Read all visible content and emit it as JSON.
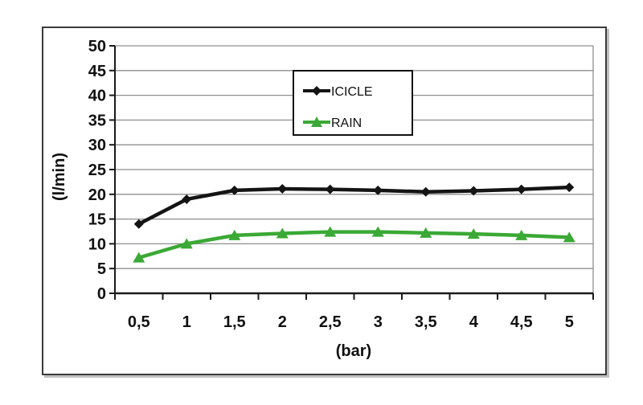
{
  "chart_data": {
    "type": "line",
    "title": "",
    "xlabel": "(bar)",
    "ylabel": "(l/min)",
    "x": [
      0.5,
      1,
      1.5,
      2,
      2.5,
      3,
      3.5,
      4,
      4.5,
      5
    ],
    "x_tick_labels": [
      "0,5",
      "1",
      "1,5",
      "2",
      "2,5",
      "3",
      "3,5",
      "4",
      "4,5",
      "5"
    ],
    "ylim": [
      0,
      50
    ],
    "y_tick_step": 5,
    "grid": true,
    "legend_position": "upper-center-inside",
    "series": [
      {
        "name": "ICICLE",
        "color": "#141414",
        "marker": "diamond",
        "values": [
          14,
          19,
          20.8,
          21.1,
          21,
          20.8,
          20.5,
          20.7,
          21,
          21.4
        ]
      },
      {
        "name": "RAIN",
        "color": "#3aa935",
        "marker": "triangle",
        "values": [
          7.2,
          10,
          11.7,
          12.1,
          12.4,
          12.4,
          12.2,
          12,
          11.7,
          11.3
        ]
      }
    ]
  },
  "colors": {
    "grid": "#8f8f8f",
    "axis": "#1a1a1a",
    "text": "#111111",
    "figure_border": "#3b3b3b",
    "background": "#ffffff"
  }
}
